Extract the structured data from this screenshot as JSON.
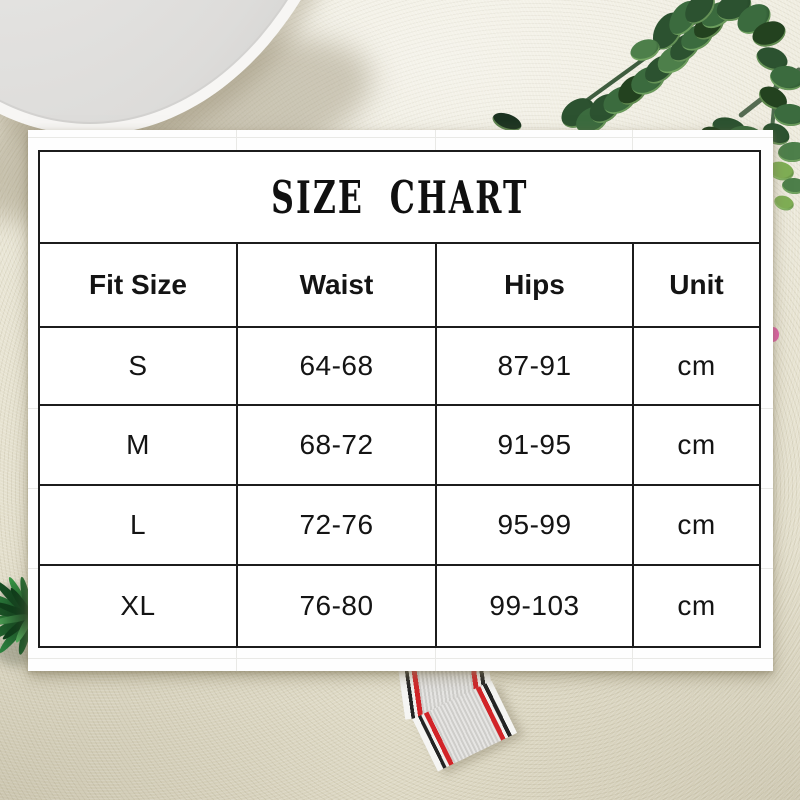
{
  "page": {
    "description": "Product size-chart card photographed on a beige surface"
  },
  "size_chart": {
    "title": "SIZE CHART",
    "columns": [
      "Fit Size",
      "Waist",
      "Hips",
      "Unit"
    ],
    "rows": [
      {
        "fit_size": "S",
        "waist": "64-68",
        "hips": "87-91",
        "unit": "cm"
      },
      {
        "fit_size": "M",
        "waist": "68-72",
        "hips": "91-95",
        "unit": "cm"
      },
      {
        "fit_size": "L",
        "waist": "72-76",
        "hips": "95-99",
        "unit": "cm"
      },
      {
        "fit_size": "XL",
        "waist": "76-80",
        "hips": "99-103",
        "unit": "cm"
      }
    ]
  },
  "chart_data": {
    "type": "table",
    "title": "SIZE CHART",
    "columns": [
      "Fit Size",
      "Waist",
      "Hips",
      "Unit"
    ],
    "rows": [
      [
        "S",
        "64-68",
        "87-91",
        "cm"
      ],
      [
        "M",
        "68-72",
        "91-95",
        "cm"
      ],
      [
        "L",
        "72-76",
        "95-99",
        "cm"
      ],
      [
        "XL",
        "76-80",
        "99-103",
        "cm"
      ]
    ],
    "unit": "cm"
  },
  "scene": {
    "decor_elements": [
      "white-bowl",
      "eucalyptus-garland",
      "fern-sprig",
      "striped-ribbon",
      "pink-petal"
    ],
    "colors": {
      "surface": "#e8e4d2",
      "card": "#fefefe",
      "table_border": "#1c1c1c",
      "leaf_green": "#2e8540",
      "ribbon_red": "#d22428",
      "ribbon_black": "#242424"
    }
  }
}
